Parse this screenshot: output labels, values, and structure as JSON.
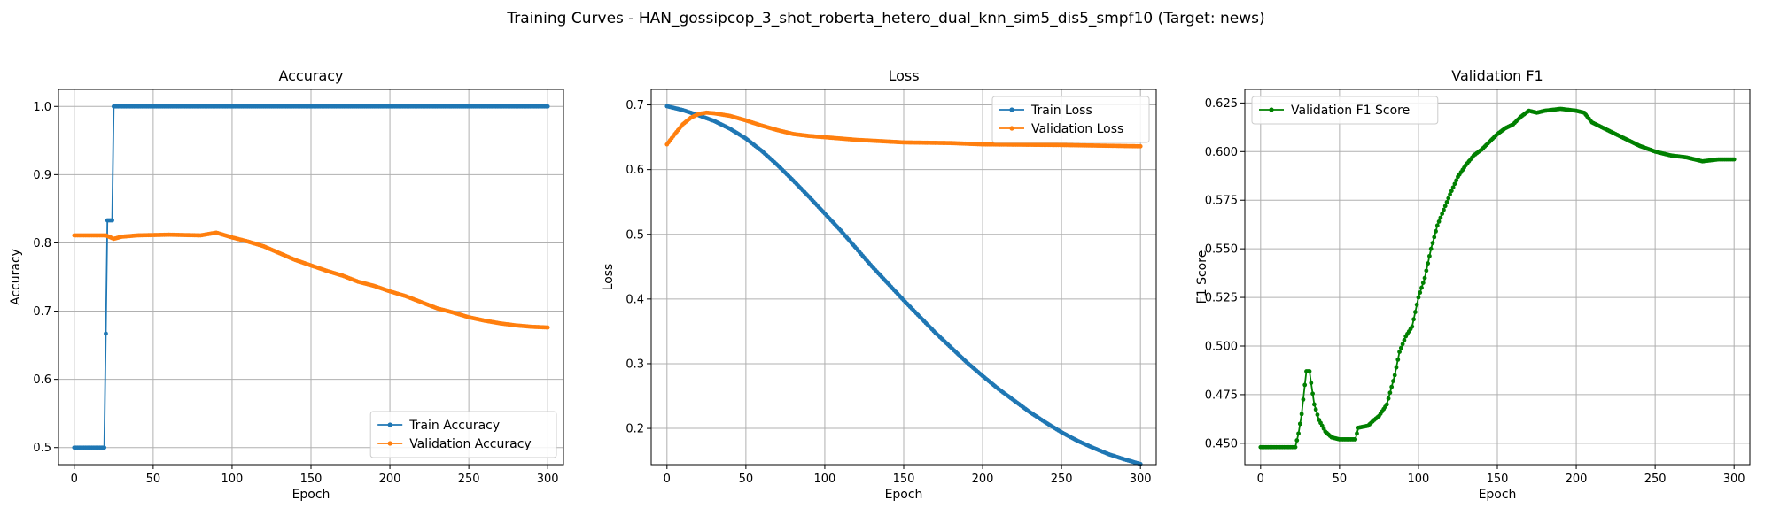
{
  "figure_title": "Training Curves - HAN_gossipcop_3_shot_roberta_hetero_dual_knn_sim5_dis5_smpf10 (Target: news)",
  "colors": {
    "train": "#1f77b4",
    "val": "#ff7f0e",
    "f1": "#008000",
    "grid": "#b0b0b0"
  },
  "chart_data": [
    {
      "type": "line",
      "title": "Accuracy",
      "xlabel": "Epoch",
      "ylabel": "Accuracy",
      "xlim": [
        -10,
        310
      ],
      "ylim": [
        0.475,
        1.025
      ],
      "xticks": [
        0,
        50,
        100,
        150,
        200,
        250,
        300
      ],
      "yticks": [
        0.5,
        0.6,
        0.7,
        0.8,
        0.9,
        1.0
      ],
      "ytick_labels": [
        "0.5",
        "0.6",
        "0.7",
        "0.8",
        "0.9",
        "1.0"
      ],
      "legend_position": "lower-right",
      "grid": true,
      "series": [
        {
          "name": "Train Accuracy",
          "color": "#1f77b4",
          "points": [
            [
              0,
              0.5
            ],
            [
              19,
              0.5
            ],
            [
              20,
              0.667
            ],
            [
              21,
              0.833
            ],
            [
              24,
              0.833
            ],
            [
              25,
              1.0
            ],
            [
              300,
              1.0
            ]
          ]
        },
        {
          "name": "Validation Accuracy",
          "color": "#ff7f0e",
          "points": [
            [
              0,
              0.811
            ],
            [
              20,
              0.811
            ],
            [
              25,
              0.806
            ],
            [
              30,
              0.809
            ],
            [
              40,
              0.811
            ],
            [
              60,
              0.812
            ],
            [
              80,
              0.811
            ],
            [
              90,
              0.815
            ],
            [
              100,
              0.808
            ],
            [
              110,
              0.802
            ],
            [
              120,
              0.795
            ],
            [
              130,
              0.785
            ],
            [
              140,
              0.775
            ],
            [
              150,
              0.767
            ],
            [
              160,
              0.759
            ],
            [
              170,
              0.752
            ],
            [
              180,
              0.743
            ],
            [
              190,
              0.737
            ],
            [
              200,
              0.729
            ],
            [
              210,
              0.722
            ],
            [
              220,
              0.713
            ],
            [
              230,
              0.704
            ],
            [
              240,
              0.698
            ],
            [
              250,
              0.691
            ],
            [
              260,
              0.686
            ],
            [
              270,
              0.682
            ],
            [
              280,
              0.679
            ],
            [
              290,
              0.677
            ],
            [
              300,
              0.676
            ]
          ]
        }
      ]
    },
    {
      "type": "line",
      "title": "Loss",
      "xlabel": "Epoch",
      "ylabel": "Loss",
      "xlim": [
        -10,
        310
      ],
      "ylim": [
        0.144,
        0.724
      ],
      "xticks": [
        0,
        50,
        100,
        150,
        200,
        250,
        300
      ],
      "yticks": [
        0.2,
        0.3,
        0.4,
        0.5,
        0.6,
        0.7
      ],
      "ytick_labels": [
        "0.2",
        "0.3",
        "0.4",
        "0.5",
        "0.6",
        "0.7"
      ],
      "legend_position": "upper-right",
      "grid": true,
      "series": [
        {
          "name": "Train Loss",
          "color": "#1f77b4",
          "points": [
            [
              0,
              0.698
            ],
            [
              10,
              0.692
            ],
            [
              20,
              0.684
            ],
            [
              30,
              0.675
            ],
            [
              40,
              0.663
            ],
            [
              50,
              0.648
            ],
            [
              60,
              0.629
            ],
            [
              70,
              0.607
            ],
            [
              80,
              0.583
            ],
            [
              90,
              0.558
            ],
            [
              100,
              0.532
            ],
            [
              110,
              0.506
            ],
            [
              120,
              0.478
            ],
            [
              130,
              0.45
            ],
            [
              140,
              0.424
            ],
            [
              150,
              0.398
            ],
            [
              160,
              0.373
            ],
            [
              170,
              0.348
            ],
            [
              180,
              0.325
            ],
            [
              190,
              0.302
            ],
            [
              200,
              0.281
            ],
            [
              210,
              0.261
            ],
            [
              220,
              0.243
            ],
            [
              230,
              0.225
            ],
            [
              240,
              0.209
            ],
            [
              250,
              0.194
            ],
            [
              260,
              0.181
            ],
            [
              270,
              0.17
            ],
            [
              280,
              0.16
            ],
            [
              290,
              0.152
            ],
            [
              300,
              0.145
            ]
          ]
        },
        {
          "name": "Validation Loss",
          "color": "#ff7f0e",
          "points": [
            [
              0,
              0.639
            ],
            [
              5,
              0.655
            ],
            [
              10,
              0.67
            ],
            [
              15,
              0.68
            ],
            [
              20,
              0.686
            ],
            [
              25,
              0.688
            ],
            [
              30,
              0.687
            ],
            [
              40,
              0.683
            ],
            [
              50,
              0.676
            ],
            [
              60,
              0.668
            ],
            [
              70,
              0.661
            ],
            [
              80,
              0.655
            ],
            [
              90,
              0.652
            ],
            [
              100,
              0.65
            ],
            [
              120,
              0.646
            ],
            [
              150,
              0.642
            ],
            [
              180,
              0.641
            ],
            [
              200,
              0.639
            ],
            [
              250,
              0.638
            ],
            [
              300,
              0.636
            ]
          ]
        }
      ]
    },
    {
      "type": "line",
      "title": "Validation F1",
      "xlabel": "Epoch",
      "ylabel": "F1 Score",
      "xlim": [
        -10,
        310
      ],
      "ylim": [
        0.439,
        0.632
      ],
      "xticks": [
        0,
        50,
        100,
        150,
        200,
        250,
        300
      ],
      "yticks": [
        0.45,
        0.475,
        0.5,
        0.525,
        0.55,
        0.575,
        0.6,
        0.625
      ],
      "ytick_labels": [
        "0.450",
        "0.475",
        "0.500",
        "0.525",
        "0.550",
        "0.575",
        "0.600",
        "0.625"
      ],
      "legend_position": "upper-left",
      "grid": true,
      "series": [
        {
          "name": "Validation F1 Score",
          "color": "#008000",
          "points": [
            [
              0,
              0.448
            ],
            [
              22,
              0.448
            ],
            [
              24,
              0.455
            ],
            [
              26,
              0.465
            ],
            [
              28,
              0.48
            ],
            [
              29,
              0.487
            ],
            [
              31,
              0.487
            ],
            [
              32,
              0.481
            ],
            [
              34,
              0.47
            ],
            [
              37,
              0.462
            ],
            [
              41,
              0.456
            ],
            [
              45,
              0.453
            ],
            [
              50,
              0.452
            ],
            [
              60,
              0.452
            ],
            [
              62,
              0.458
            ],
            [
              68,
              0.459
            ],
            [
              72,
              0.462
            ],
            [
              75,
              0.464
            ],
            [
              80,
              0.47
            ],
            [
              85,
              0.485
            ],
            [
              88,
              0.497
            ],
            [
              92,
              0.505
            ],
            [
              96,
              0.51
            ],
            [
              100,
              0.525
            ],
            [
              104,
              0.535
            ],
            [
              108,
              0.55
            ],
            [
              112,
              0.562
            ],
            [
              116,
              0.57
            ],
            [
              120,
              0.578
            ],
            [
              125,
              0.587
            ],
            [
              130,
              0.593
            ],
            [
              135,
              0.598
            ],
            [
              140,
              0.601
            ],
            [
              145,
              0.605
            ],
            [
              150,
              0.609
            ],
            [
              155,
              0.612
            ],
            [
              160,
              0.614
            ],
            [
              165,
              0.618
            ],
            [
              170,
              0.621
            ],
            [
              175,
              0.62
            ],
            [
              180,
              0.621
            ],
            [
              190,
              0.622
            ],
            [
              200,
              0.621
            ],
            [
              205,
              0.62
            ],
            [
              210,
              0.615
            ],
            [
              220,
              0.611
            ],
            [
              230,
              0.607
            ],
            [
              240,
              0.603
            ],
            [
              250,
              0.6
            ],
            [
              260,
              0.598
            ],
            [
              270,
              0.597
            ],
            [
              280,
              0.595
            ],
            [
              290,
              0.596
            ],
            [
              300,
              0.596
            ]
          ]
        }
      ]
    }
  ]
}
